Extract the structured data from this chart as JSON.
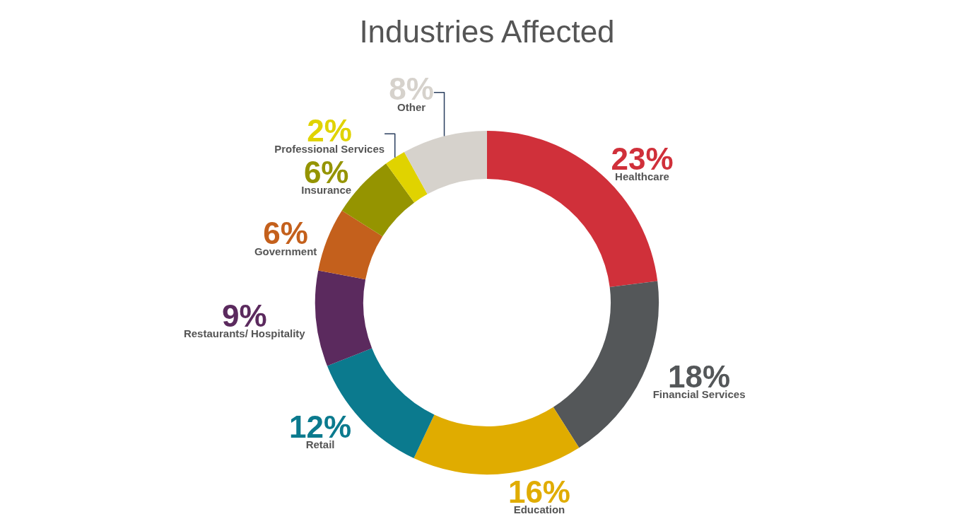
{
  "chart_data": {
    "type": "donut",
    "title": "Industries Affected",
    "categories": [
      "Healthcare",
      "Financial Services",
      "Education",
      "Retail",
      "Restaurants/ Hospitality",
      "Government",
      "Insurance",
      "Professional Services",
      "Other"
    ],
    "values": [
      23,
      18,
      16,
      12,
      9,
      6,
      6,
      2,
      8
    ],
    "colors": [
      "#d0303a",
      "#545759",
      "#e0ac00",
      "#0b7a8e",
      "#5b2a5e",
      "#c4601c",
      "#959400",
      "#e0d300",
      "#d6d2cc"
    ],
    "value_labels": [
      "23%",
      "18%",
      "16%",
      "12%",
      "9%",
      "6%",
      "6%",
      "2%",
      "8%"
    ],
    "legend": false
  }
}
